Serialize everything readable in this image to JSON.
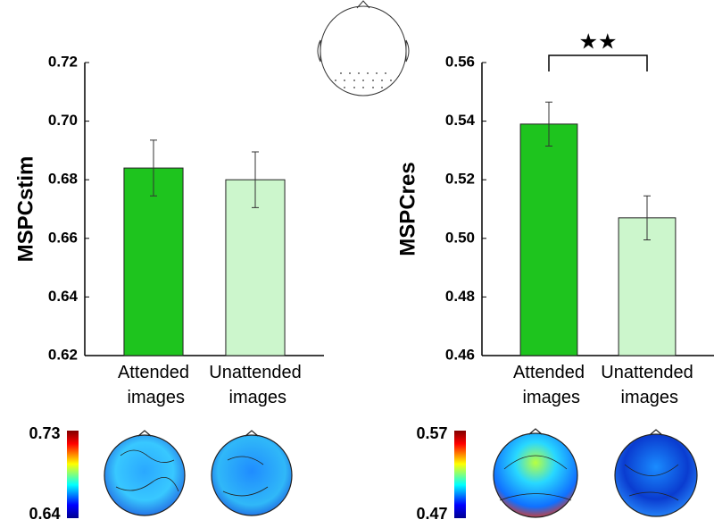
{
  "chart_data": [
    {
      "type": "bar",
      "ylabel": "MSPCstim",
      "categories": [
        "Attended images",
        "Unattended images"
      ],
      "values": [
        0.684,
        0.68
      ],
      "errors": [
        0.0095,
        0.0095
      ],
      "colors": [
        "#1ec41e",
        "#ccf6cc"
      ],
      "ylim": [
        0.62,
        0.72
      ],
      "yticks": [
        0.62,
        0.64,
        0.66,
        0.68,
        {
          "value": 0.7,
          "label": "0.70"
        },
        0.72
      ],
      "colorbar": [
        0.64,
        0.73
      ]
    },
    {
      "type": "bar",
      "ylabel": "MSPCres",
      "categories": [
        "Attended images",
        "Unattended images"
      ],
      "values": [
        0.539,
        0.507
      ],
      "errors": [
        0.0075,
        0.0075
      ],
      "colors": [
        "#1ec41e",
        "#ccf6cc"
      ],
      "ylim": [
        0.46,
        0.56
      ],
      "yticks": [
        0.46,
        0.48,
        {
          "value": 0.5,
          "label": "0.50"
        },
        0.52,
        0.54,
        0.56
      ],
      "annotation": "★★",
      "colorbar": [
        0.47,
        0.57
      ]
    }
  ]
}
